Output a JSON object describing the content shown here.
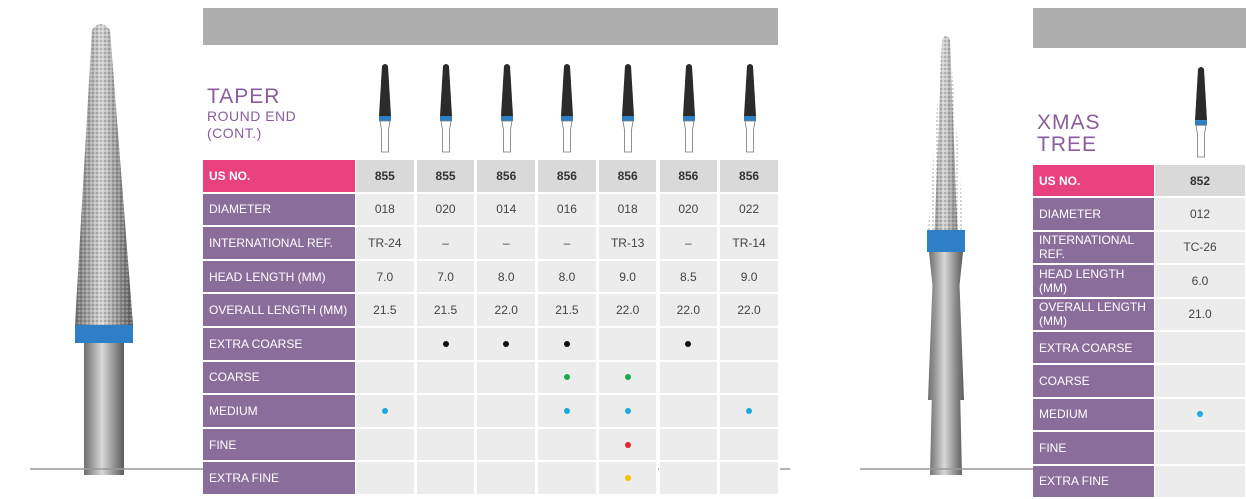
{
  "tables": [
    {
      "title": [
        "TAPER",
        "ROUND END",
        "(CONT.)"
      ],
      "header_label": "US NO.",
      "us_no": [
        "855",
        "855",
        "856",
        "856",
        "856",
        "856",
        "856"
      ],
      "rows": [
        {
          "label": "DIAMETER",
          "values": [
            "018",
            "020",
            "014",
            "016",
            "018",
            "020",
            "022"
          ]
        },
        {
          "label": "INTERNATIONAL REF.",
          "values": [
            "TR-24",
            "–",
            "–",
            "–",
            "TR-13",
            "–",
            "TR-14"
          ]
        },
        {
          "label": "HEAD LENGTH (MM)",
          "values": [
            "7.0",
            "7.0",
            "8.0",
            "8.0",
            "9.0",
            "8.5",
            "9.0"
          ]
        },
        {
          "label": "OVERALL LENGTH (MM)",
          "values": [
            "21.5",
            "21.5",
            "22.0",
            "21.5",
            "22.0",
            "22.0",
            "22.0"
          ]
        }
      ],
      "grits": [
        {
          "label": "EXTRA COARSE",
          "color": "#111111",
          "available": [
            false,
            true,
            true,
            true,
            false,
            true,
            false
          ]
        },
        {
          "label": "COARSE",
          "color": "#1aa84f",
          "available": [
            false,
            false,
            false,
            true,
            true,
            false,
            false
          ]
        },
        {
          "label": "MEDIUM",
          "color": "#1ea7e1",
          "available": [
            true,
            false,
            false,
            true,
            true,
            false,
            true
          ]
        },
        {
          "label": "FINE",
          "color": "#e0262a",
          "available": [
            false,
            false,
            false,
            false,
            true,
            false,
            false
          ]
        },
        {
          "label": "EXTRA FINE",
          "color": "#f2c200",
          "available": [
            false,
            false,
            false,
            false,
            true,
            false,
            false
          ]
        }
      ]
    },
    {
      "title": [
        "XMAS",
        "TREE"
      ],
      "header_label": "US NO.",
      "us_no": [
        "852"
      ],
      "rows": [
        {
          "label": "DIAMETER",
          "values": [
            "012"
          ]
        },
        {
          "label": "INTERNATIONAL REF.",
          "values": [
            "TC-26"
          ]
        },
        {
          "label": "HEAD LENGTH (MM)",
          "values": [
            "6.0"
          ]
        },
        {
          "label": "OVERALL LENGTH (MM)",
          "values": [
            "21.0"
          ]
        }
      ],
      "grits": [
        {
          "label": "EXTRA COARSE",
          "color": "#111111",
          "available": [
            false
          ]
        },
        {
          "label": "COARSE",
          "color": "#1aa84f",
          "available": [
            false
          ]
        },
        {
          "label": "MEDIUM",
          "color": "#1ea7e1",
          "available": [
            true
          ]
        },
        {
          "label": "FINE",
          "color": "#e0262a",
          "available": [
            false
          ]
        },
        {
          "label": "EXTRA FINE",
          "color": "#f2c200",
          "available": [
            false
          ]
        }
      ]
    }
  ]
}
